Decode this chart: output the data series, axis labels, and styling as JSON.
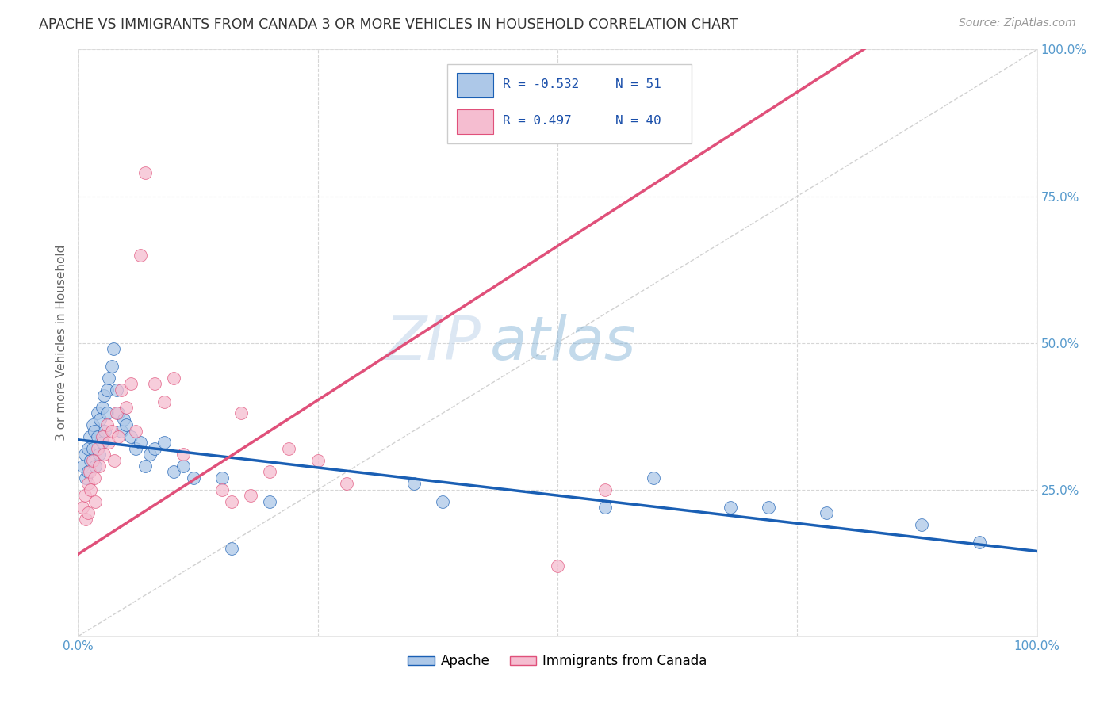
{
  "title": "APACHE VS IMMIGRANTS FROM CANADA 3 OR MORE VEHICLES IN HOUSEHOLD CORRELATION CHART",
  "source": "Source: ZipAtlas.com",
  "ylabel": "3 or more Vehicles in Household",
  "xlim": [
    0,
    1
  ],
  "ylim": [
    0,
    1
  ],
  "legend_labels": [
    "Apache",
    "Immigrants from Canada"
  ],
  "legend_R": [
    -0.532,
    0.497
  ],
  "legend_N": [
    51,
    40
  ],
  "series1_color": "#adc8e8",
  "series2_color": "#f5bdd0",
  "line1_color": "#1a5fb4",
  "line2_color": "#e0507a",
  "watermark_zip": "ZIP",
  "watermark_atlas": "atlas",
  "apache_x": [
    0.005,
    0.007,
    0.008,
    0.01,
    0.01,
    0.012,
    0.013,
    0.015,
    0.015,
    0.017,
    0.018,
    0.02,
    0.02,
    0.022,
    0.023,
    0.025,
    0.025,
    0.027,
    0.028,
    0.03,
    0.03,
    0.032,
    0.035,
    0.037,
    0.04,
    0.042,
    0.045,
    0.048,
    0.05,
    0.055,
    0.06,
    0.065,
    0.07,
    0.075,
    0.08,
    0.09,
    0.1,
    0.11,
    0.12,
    0.15,
    0.16,
    0.2,
    0.35,
    0.38,
    0.55,
    0.6,
    0.68,
    0.72,
    0.78,
    0.88,
    0.94
  ],
  "apache_y": [
    0.29,
    0.31,
    0.27,
    0.32,
    0.28,
    0.34,
    0.3,
    0.36,
    0.32,
    0.35,
    0.29,
    0.38,
    0.34,
    0.31,
    0.37,
    0.39,
    0.33,
    0.41,
    0.35,
    0.42,
    0.38,
    0.44,
    0.46,
    0.49,
    0.42,
    0.38,
    0.35,
    0.37,
    0.36,
    0.34,
    0.32,
    0.33,
    0.29,
    0.31,
    0.32,
    0.33,
    0.28,
    0.29,
    0.27,
    0.27,
    0.15,
    0.23,
    0.26,
    0.23,
    0.22,
    0.27,
    0.22,
    0.22,
    0.21,
    0.19,
    0.16
  ],
  "canada_x": [
    0.005,
    0.007,
    0.008,
    0.01,
    0.01,
    0.012,
    0.013,
    0.015,
    0.017,
    0.018,
    0.02,
    0.022,
    0.025,
    0.027,
    0.03,
    0.032,
    0.035,
    0.038,
    0.04,
    0.042,
    0.045,
    0.05,
    0.055,
    0.06,
    0.065,
    0.07,
    0.08,
    0.09,
    0.1,
    0.11,
    0.15,
    0.16,
    0.17,
    0.18,
    0.2,
    0.22,
    0.25,
    0.28,
    0.5,
    0.55
  ],
  "canada_y": [
    0.22,
    0.24,
    0.2,
    0.26,
    0.21,
    0.28,
    0.25,
    0.3,
    0.27,
    0.23,
    0.32,
    0.29,
    0.34,
    0.31,
    0.36,
    0.33,
    0.35,
    0.3,
    0.38,
    0.34,
    0.42,
    0.39,
    0.43,
    0.35,
    0.65,
    0.79,
    0.43,
    0.4,
    0.44,
    0.31,
    0.25,
    0.23,
    0.38,
    0.24,
    0.28,
    0.32,
    0.3,
    0.26,
    0.12,
    0.25
  ]
}
